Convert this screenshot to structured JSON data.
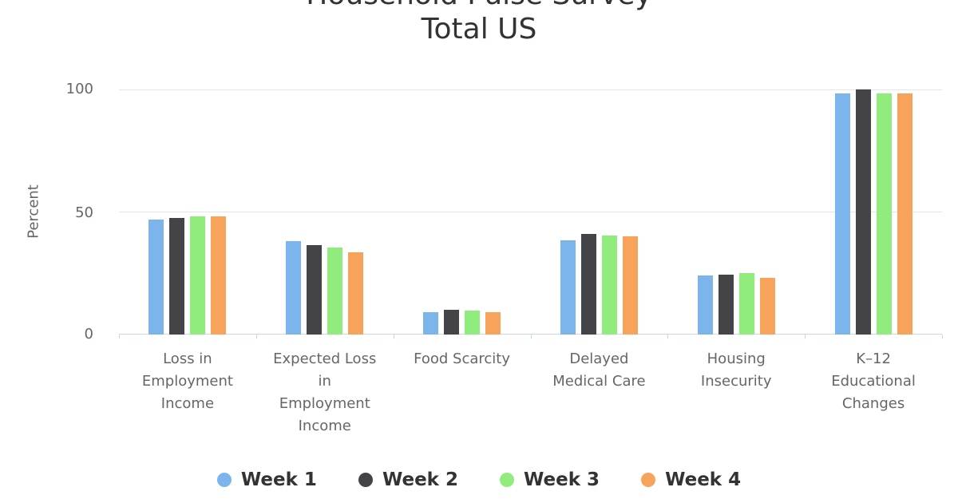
{
  "title": {
    "line1": "Household Pulse Survey",
    "line2": "Total US"
  },
  "y_axis": {
    "label": "Percent",
    "ticks": {
      "t100": "100",
      "t50": "50",
      "t0": "0"
    }
  },
  "chart_data": {
    "type": "bar",
    "title": "Household Pulse Survey Total US",
    "xlabel": "",
    "ylabel": "Percent",
    "ylim": [
      0,
      100
    ],
    "yticks": [
      0,
      50,
      100
    ],
    "grid": true,
    "legend_position": "bottom",
    "categories": [
      "Loss in Employment Income",
      "Expected Loss in Employment Income",
      "Food Scarcity",
      "Delayed Medical Care",
      "Housing Insecurity",
      "K–12 Educational Changes"
    ],
    "category_label_lines": [
      [
        "Loss in",
        "Employment",
        "Income"
      ],
      [
        "Expected Loss",
        "in",
        "Employment",
        "Income"
      ],
      [
        "Food Scarcity"
      ],
      [
        "Delayed",
        "Medical Care"
      ],
      [
        "Housing",
        "Insecurity"
      ],
      [
        "K–12",
        "Educational",
        "Changes"
      ]
    ],
    "series": [
      {
        "name": "Week 1",
        "color": "#7cb5ec",
        "values": [
          47.0,
          38.1,
          9.2,
          38.5,
          24.2,
          98.4
        ]
      },
      {
        "name": "Week 2",
        "color": "#434348",
        "values": [
          47.5,
          36.6,
          10.1,
          40.9,
          24.4,
          100.0
        ]
      },
      {
        "name": "Week 3",
        "color": "#90ed7d",
        "values": [
          48.3,
          35.5,
          9.8,
          40.3,
          25.0,
          98.4
        ]
      },
      {
        "name": "Week 4",
        "color": "#f7a35c",
        "values": [
          48.2,
          33.7,
          9.2,
          40.2,
          23.0,
          98.4
        ]
      }
    ]
  },
  "colors": {
    "title_text": "#333333",
    "axis_text": "#666666",
    "gridline": "#e6e6e6",
    "axis_line": "#ccd6eb",
    "background": "#ffffff"
  }
}
